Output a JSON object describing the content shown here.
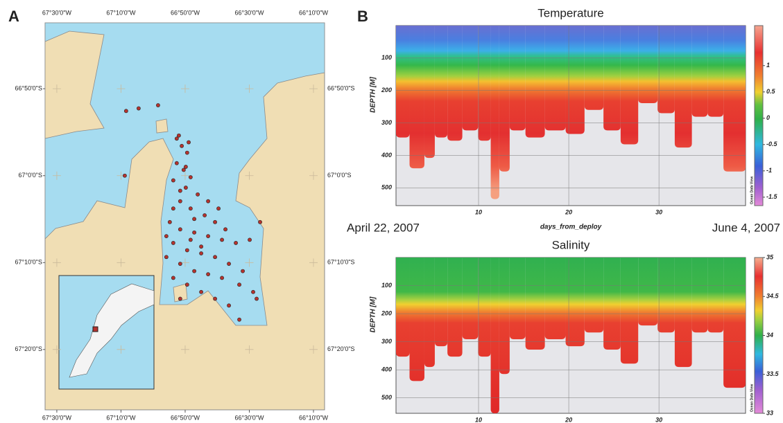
{
  "chart_data": [
    {
      "type": "scatter",
      "panel": "A",
      "x": [
        -67.14,
        -67.075,
        -66.974,
        -67.147,
        -66.866,
        -66.851,
        -66.823,
        -66.877,
        -66.841,
        -66.805,
        -66.83,
        -66.768,
        -66.859,
        -66.895,
        -66.805,
        -66.732,
        -66.678,
        -66.913,
        -66.859,
        -66.786,
        -66.714,
        -66.642,
        -66.57,
        -66.498,
        -66.444,
        -66.895,
        -66.823,
        -66.75,
        -66.678,
        -66.606,
        -66.534,
        -66.931,
        -66.859,
        -66.786,
        -66.714,
        -66.642,
        -66.552,
        -66.48,
        -66.895,
        -66.823,
        -66.75,
        -66.678,
        -66.606,
        -66.859,
        -66.462,
        -66.552,
        -66.877,
        -66.815,
        -66.83,
        -66.786,
        -66.714,
        -66.66,
        -66.624,
        -66.895,
        -66.859,
        -66.805,
        -66.75,
        -66.931
      ],
      "values": [
        -66.876,
        -66.871,
        -66.865,
        -67.0,
        -66.923,
        -66.943,
        -66.956,
        -66.976,
        -66.989,
        -67.003,
        -67.023,
        -67.036,
        -67.049,
        -67.063,
        -67.063,
        -67.076,
        -67.089,
        -67.089,
        -67.103,
        -67.109,
        -67.116,
        -67.123,
        -67.129,
        -67.123,
        -67.089,
        -67.129,
        -67.143,
        -67.149,
        -67.156,
        -67.169,
        -67.183,
        -67.156,
        -67.169,
        -67.183,
        -67.189,
        -67.196,
        -67.209,
        -67.223,
        -67.196,
        -67.209,
        -67.223,
        -67.236,
        -67.249,
        -67.236,
        -67.236,
        -67.276,
        -66.929,
        -66.936,
        -66.983,
        -67.083,
        -67.049,
        -67.063,
        -67.103,
        -67.009,
        -67.029,
        -67.123,
        -67.136,
        -67.116
      ],
      "color": "#b5332e",
      "xlim": [
        -67.561,
        -66.109
      ],
      "ylim": [
        -67.449,
        -66.707
      ],
      "xticks": [
        {
          "value": -67.5,
          "label": "67°30'0\"W"
        },
        {
          "value": -67.1667,
          "label": "67°10'0\"W"
        },
        {
          "value": -66.8333,
          "label": "66°50'0\"W"
        },
        {
          "value": -66.5,
          "label": "66°30'0\"W"
        },
        {
          "value": -66.1667,
          "label": "66°10'0\"W"
        }
      ],
      "yticks": [
        {
          "value": -66.8333,
          "label": "66°50'0\"S"
        },
        {
          "value": -67.0,
          "label": "67°0'0\"S"
        },
        {
          "value": -67.1667,
          "label": "67°10'0\"S"
        },
        {
          "value": -67.3333,
          "label": "67°20'0\"S"
        }
      ],
      "grid": true
    },
    {
      "type": "section",
      "panel": "B",
      "title": "Temperature",
      "xlabel": "days_from_deploy",
      "ylabel": "DEPTH [M]",
      "annotations": [
        "April 22, 2007",
        "June 4, 2007"
      ],
      "credit": "Ocean Data View",
      "x": [
        1.2,
        3.5,
        4.5,
        5.8,
        7.3,
        9.1,
        10.8,
        11.9,
        12.7,
        14.2,
        16.2,
        18.5,
        20.8,
        22.7,
        25.0,
        26.5,
        28.9,
        30.8,
        32.7,
        34.6,
        36.2,
        38.1
      ],
      "values": [
        345,
        440,
        408,
        345,
        355,
        323,
        355,
        535,
        450,
        323,
        345,
        323,
        334,
        260,
        323,
        366,
        239,
        270,
        376,
        281,
        281,
        450
      ],
      "xlim": [
        0.85,
        39.6
      ],
      "ylim": [
        555,
        0
      ],
      "xticks": [
        10,
        20,
        30
      ],
      "yticks": [
        100,
        200,
        300,
        400,
        500
      ],
      "clim": [
        -1.66,
        1.76
      ],
      "cticks": [
        -1.5,
        -1,
        -0.5,
        0,
        0.5,
        1
      ],
      "grid": true
    },
    {
      "type": "section",
      "title": "Salinity",
      "ylabel": "DEPTH [M]",
      "credit": "Ocean Data View",
      "x": [
        1.2,
        3.5,
        4.5,
        5.8,
        7.3,
        9.1,
        10.8,
        11.9,
        12.7,
        14.2,
        16.2,
        18.5,
        20.8,
        22.7,
        25.0,
        26.5,
        28.9,
        30.8,
        32.7,
        34.6,
        36.2,
        38.1
      ],
      "values": [
        353,
        440,
        390,
        316,
        353,
        291,
        353,
        555,
        415,
        291,
        328,
        291,
        316,
        267,
        328,
        378,
        242,
        267,
        390,
        267,
        267,
        464
      ],
      "xlim": [
        0.85,
        39.6
      ],
      "ylim": [
        555,
        0
      ],
      "xticks": [
        10,
        20,
        30
      ],
      "yticks": [
        100,
        200,
        300,
        400,
        500
      ],
      "clim": [
        33,
        35
      ],
      "cticks": [
        33,
        33.5,
        34,
        34.5,
        35
      ],
      "grid": true
    }
  ]
}
